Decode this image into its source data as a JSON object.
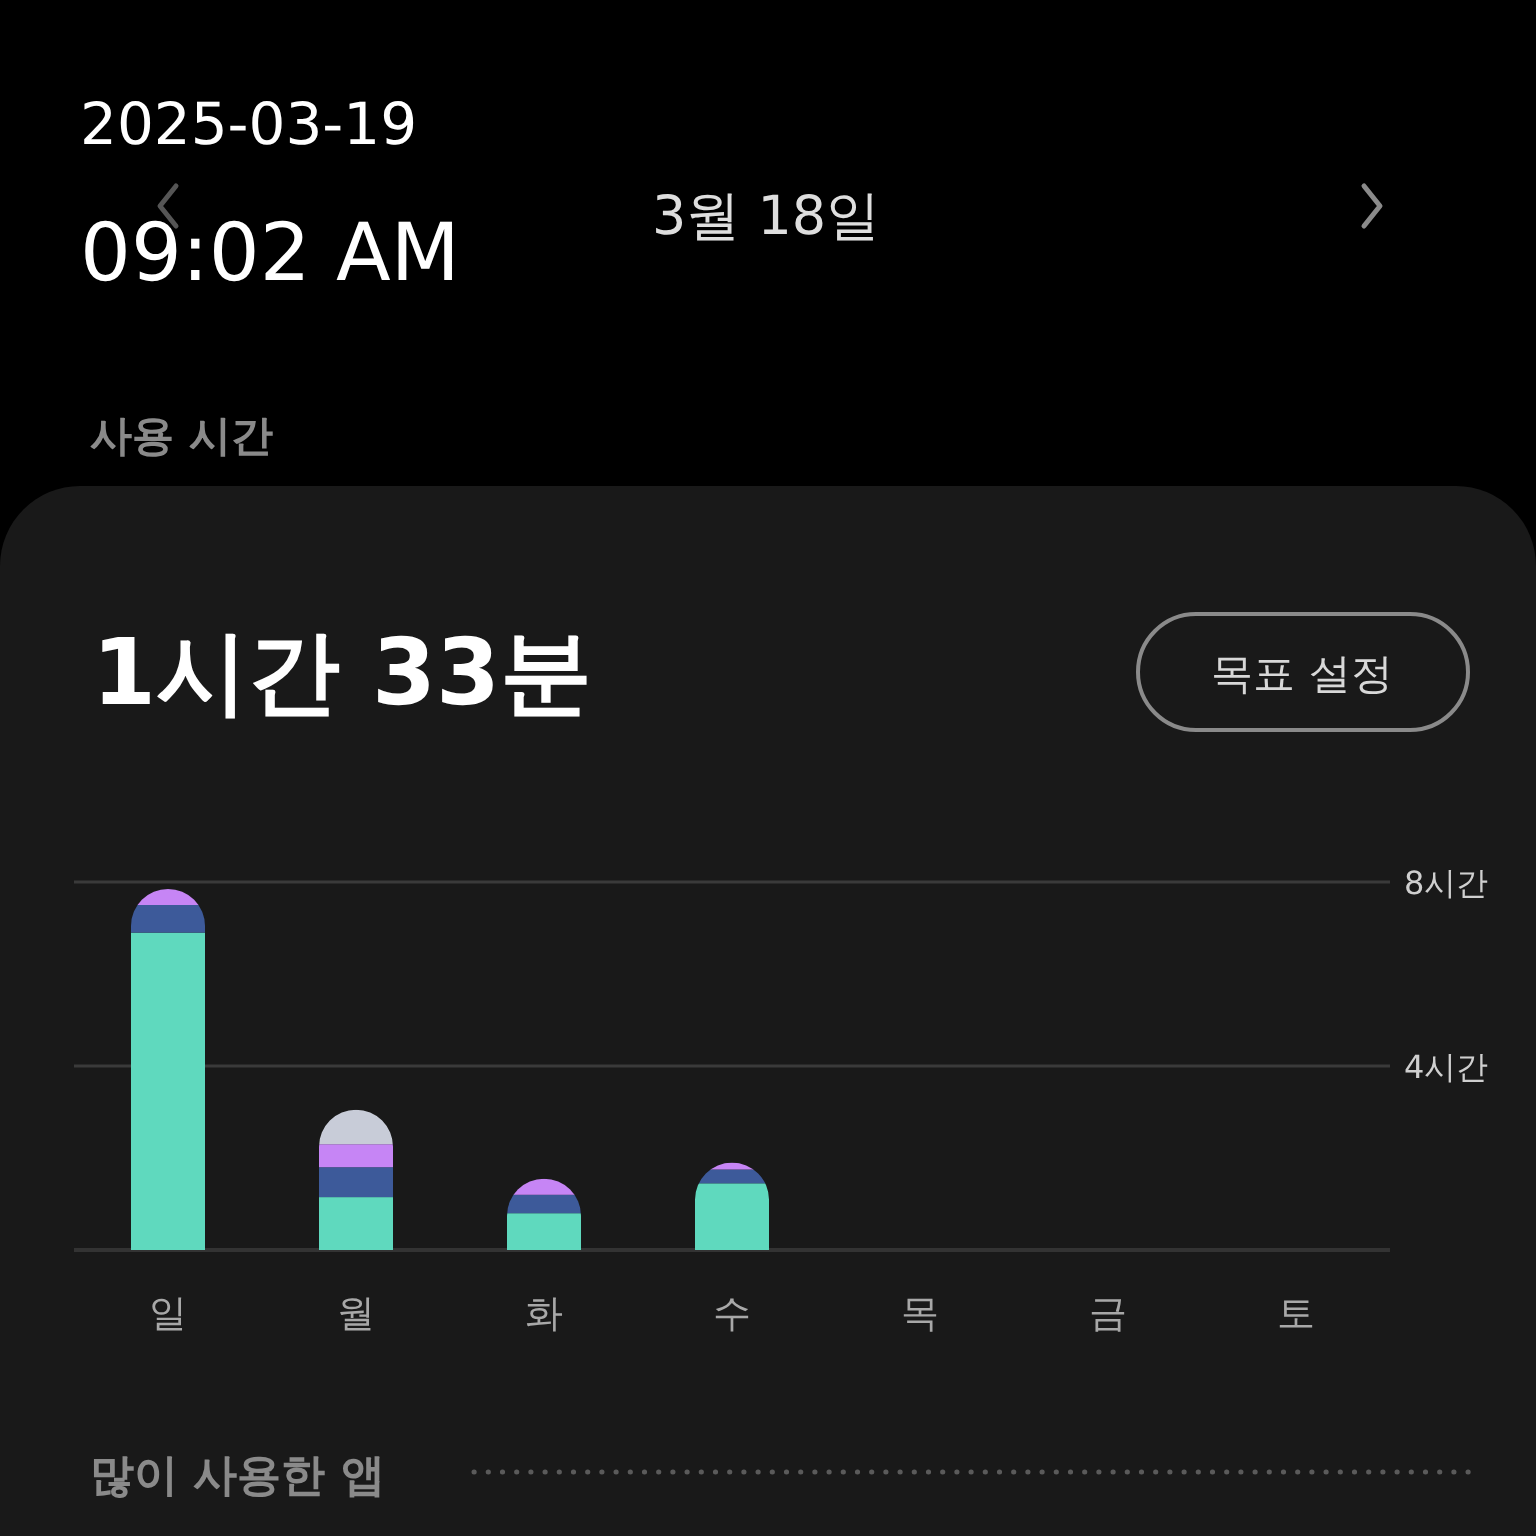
{
  "chart_data": {
    "type": "bar",
    "title": "사용 시간",
    "subtitle": "1시간 33분",
    "annotations": [
      "2025-03-19",
      "09:02 AM",
      "3월 18일",
      "목표 설정",
      "많이 사용한 앱"
    ],
    "categories": [
      "일",
      "월",
      "화",
      "수",
      "목",
      "금",
      "토"
    ],
    "stacked": true,
    "series": [
      {
        "color": "#5fd9be",
        "values": [
          6.9,
          1.15,
          0.8,
          1.45,
          null,
          null,
          null
        ]
      },
      {
        "color": "#3d5a9a",
        "values": [
          0.6,
          0.65,
          0.4,
          0.3,
          null,
          null,
          null
        ]
      },
      {
        "color": "#c685f5",
        "values": [
          0.35,
          0.5,
          0.35,
          0.15,
          null,
          null,
          null
        ]
      },
      {
        "color": "#c8ccd8",
        "values": [
          null,
          0.75,
          null,
          null,
          null,
          null,
          null
        ]
      }
    ],
    "ylim": [
      0,
      8
    ],
    "yticks": [
      {
        "value": 4,
        "label": "4시간"
      },
      {
        "value": 8,
        "label": "8시간"
      }
    ],
    "grid": "y"
  }
}
